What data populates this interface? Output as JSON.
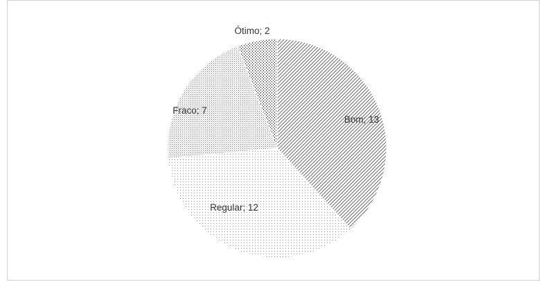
{
  "chart_data": {
    "type": "pie",
    "title": "",
    "categories": [
      "Bom",
      "Regular",
      "Fraco",
      "Ótimo"
    ],
    "values": [
      13,
      12,
      7,
      2
    ],
    "labels": [
      "Bom; 13",
      "Regular; 12",
      "Fraco; 7",
      "Ótimo; 2"
    ],
    "legend": "none",
    "colors": [
      "#ffffff",
      "#ffffff",
      "#ffffff",
      "#ffffff"
    ],
    "fill_patterns": [
      "diagonal-hatch",
      "sparse-dots",
      "dense-dots",
      "vertical-dashes"
    ]
  }
}
